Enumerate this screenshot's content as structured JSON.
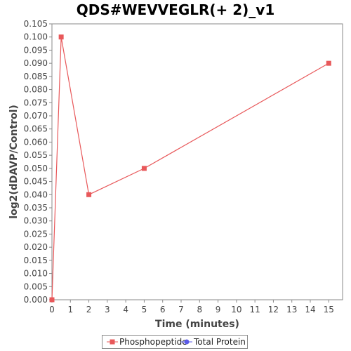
{
  "chart_data": {
    "type": "line",
    "title": "QDS#WEVVEGLR(+ 2)_v1",
    "xlabel": "Time (minutes)",
    "ylabel": "log2(dDAVP/Control)",
    "xlim": [
      0,
      15.75
    ],
    "ylim": [
      0,
      0.105
    ],
    "x_ticks": [
      0,
      1,
      2,
      3,
      4,
      5,
      6,
      7,
      8,
      9,
      10,
      11,
      12,
      13,
      14,
      15
    ],
    "y_ticks": [
      "0.000",
      "0.005",
      "0.010",
      "0.015",
      "0.020",
      "0.025",
      "0.030",
      "0.035",
      "0.040",
      "0.045",
      "0.050",
      "0.055",
      "0.060",
      "0.065",
      "0.070",
      "0.075",
      "0.080",
      "0.085",
      "0.090",
      "0.095",
      "0.100",
      "0.105"
    ],
    "grid": false,
    "legend_position": "bottom",
    "series": [
      {
        "name": "Phosphopeptide",
        "color": "#e8585a",
        "marker": "square",
        "points": [
          {
            "x": 0,
            "y": 0.0
          },
          {
            "x": 0.5,
            "y": 0.1
          },
          {
            "x": 2,
            "y": 0.04
          },
          {
            "x": 5,
            "y": 0.05
          },
          {
            "x": 15,
            "y": 0.09
          }
        ]
      },
      {
        "name": "Total Protein",
        "color": "#5a5ae8",
        "marker": "circle",
        "points": []
      }
    ]
  }
}
